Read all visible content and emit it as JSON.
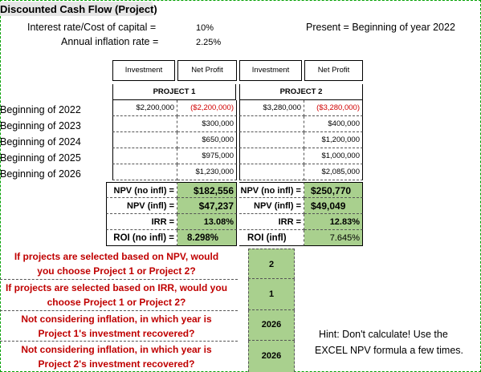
{
  "title": "Discounted Cash Flow (Project)",
  "interest_label": "Interest rate/Cost of capital =",
  "interest_value": "10%",
  "inflation_label": "Annual inflation rate =",
  "inflation_value": "2.25%",
  "present_label": "Present = Beginning of year 2022",
  "headers": {
    "inv1": "Investment",
    "np1": "Net Profit",
    "inv2": "Investment",
    "np2": "Net Profit"
  },
  "project1": "PROJECT 1",
  "project2": "PROJECT 2",
  "years": [
    "Beginning of 2022",
    "Beginning of 2023",
    "Beginning of 2024",
    "Beginning of 2025",
    "Beginning of 2026"
  ],
  "p1_investment": "$2,200,000",
  "p1_profit": [
    "($2,200,000)",
    "$300,000",
    "$650,000",
    "$975,000",
    "$1,230,000"
  ],
  "p2_investment": "$3,280,000",
  "p2_profit": [
    "($3,280,000)",
    "$400,000",
    "$1,200,000",
    "$1,000,000",
    "$2,085,000"
  ],
  "metrics": {
    "npv_noinfl_label": "NPV (no infl) =",
    "npv_infl_label": "NPV  (infl) =",
    "irr_label": "IRR =",
    "roi_noinfl_label": "ROI (no infl) =",
    "roi_infl_label": "ROI (infl)",
    "p1_npv_noinfl": "$182,556",
    "p1_npv_infl": "$47,237",
    "p1_irr": "13.08%",
    "p1_roi": "8.298%",
    "p2_npv_noinfl": "$250,770",
    "p2_npv_infl": "$49,049",
    "p2_irr": "12.83%",
    "p2_roi": "7.645%"
  },
  "questions": [
    {
      "line1": "If projects are selected based on NPV, would",
      "line2": "you choose Project 1 or Project 2?",
      "answer": "2"
    },
    {
      "line1": "If projects are selected based on IRR, would you",
      "line2": "choose Project 1 or Project 2?",
      "answer": "1"
    },
    {
      "line1": "Not considering inflation, in which year is",
      "line2": "Project 1's investment recovered?",
      "answer": "2026"
    },
    {
      "line1": "Not considering inflation, in which year is",
      "line2": "Project 2's investment recovered?",
      "answer": "2026"
    }
  ],
  "hint_line1": "Hint: Don't calculate! Use the",
  "hint_line2": "EXCEL NPV formula a few times."
}
